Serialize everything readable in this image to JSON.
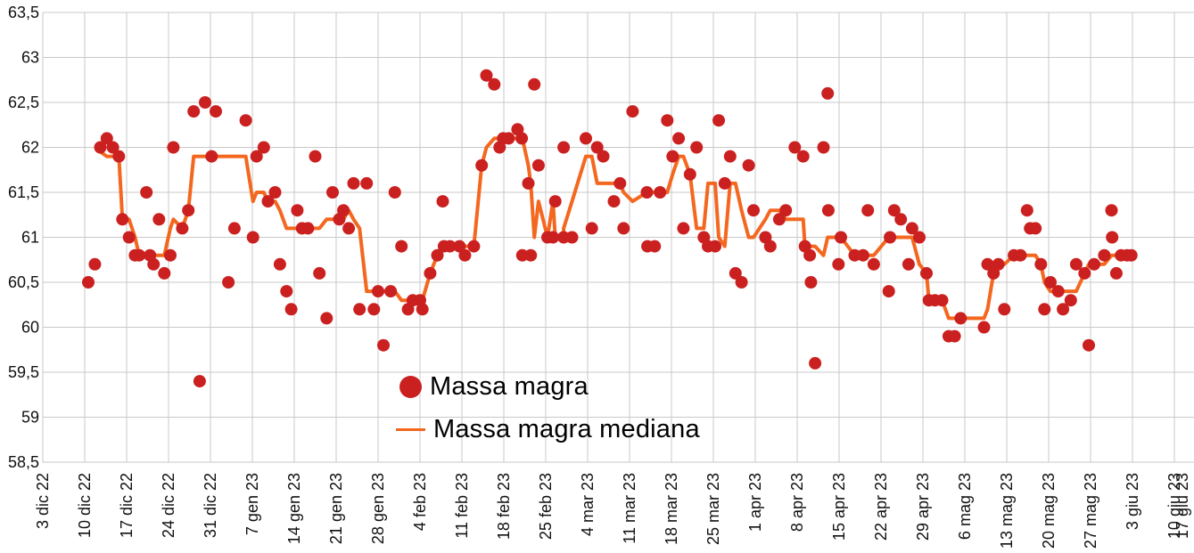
{
  "chart_data": {
    "type": "scatter",
    "title": "",
    "xlabel": "",
    "ylabel": "",
    "grid": true,
    "y_axis": {
      "min": 58.5,
      "max": 63.5,
      "step": 0.5,
      "tick_labels": [
        "63,5",
        "63",
        "62,5",
        "62",
        "61,5",
        "61",
        "60,5",
        "60",
        "59,5",
        "59",
        "58,5"
      ]
    },
    "x_axis": {
      "unit": "weeks",
      "tick_labels": [
        "3 dic 22",
        "10 dic 22",
        "17 dic 22",
        "24 dic 22",
        "31 dic 22",
        "7 gen 23",
        "14 gen 23",
        "21 gen 23",
        "28 gen 23",
        "4 feb 23",
        "11 feb 23",
        "18 feb 23",
        "25 feb 23",
        "4 mar 23",
        "11 mar 23",
        "18 mar 23",
        "25 mar 23",
        "1 apr 23",
        "8 apr 23",
        "15 apr 23",
        "22 apr 23",
        "29 apr 23",
        "6 mag 23",
        "13 mag 23",
        "20 mag 23",
        "27 mag 23",
        "3 giu 23",
        "10 giu 23",
        "17 giu 23"
      ]
    },
    "legend_position": "bottom-center-inside",
    "series": [
      {
        "name": "Massa magra",
        "type": "scatter",
        "color": "#cb2020",
        "marker": "circle",
        "points_format": [
          "days_since_3_dic_22",
          "kg"
        ],
        "points": [
          [
            7.6,
            60.5
          ],
          [
            8.7,
            60.7
          ],
          [
            9.6,
            62.0
          ],
          [
            10.7,
            62.1
          ],
          [
            11.7,
            62.0
          ],
          [
            12.7,
            61.9
          ],
          [
            13.3,
            61.2
          ],
          [
            14.4,
            61.0
          ],
          [
            15.4,
            60.8
          ],
          [
            16.1,
            60.8
          ],
          [
            17.3,
            61.5
          ],
          [
            17.9,
            60.8
          ],
          [
            18.5,
            60.7
          ],
          [
            19.4,
            61.2
          ],
          [
            20.3,
            60.6
          ],
          [
            21.3,
            60.8
          ],
          [
            21.8,
            62.0
          ],
          [
            23.3,
            61.1
          ],
          [
            24.3,
            61.3
          ],
          [
            25.2,
            62.4
          ],
          [
            26.2,
            59.4
          ],
          [
            27.1,
            62.5
          ],
          [
            28.2,
            61.9
          ],
          [
            28.9,
            62.4
          ],
          [
            31.0,
            60.5
          ],
          [
            32.0,
            61.1
          ],
          [
            33.9,
            62.3
          ],
          [
            35.1,
            61.0
          ],
          [
            35.7,
            61.9
          ],
          [
            36.9,
            62.0
          ],
          [
            37.6,
            61.4
          ],
          [
            38.8,
            61.5
          ],
          [
            39.6,
            60.7
          ],
          [
            40.7,
            60.4
          ],
          [
            41.5,
            60.2
          ],
          [
            42.5,
            61.3
          ],
          [
            43.3,
            61.1
          ],
          [
            44.3,
            61.1
          ],
          [
            45.5,
            61.9
          ],
          [
            46.2,
            60.6
          ],
          [
            47.4,
            60.1
          ],
          [
            48.4,
            61.5
          ],
          [
            49.5,
            61.2
          ],
          [
            50.2,
            61.3
          ],
          [
            51.1,
            61.1
          ],
          [
            51.9,
            61.6
          ],
          [
            52.9,
            60.2
          ],
          [
            54.1,
            61.6
          ],
          [
            55.3,
            60.2
          ],
          [
            56.0,
            60.4
          ],
          [
            56.9,
            59.8
          ],
          [
            58.1,
            60.4
          ],
          [
            58.8,
            61.5
          ],
          [
            59.9,
            60.9
          ],
          [
            61.0,
            60.2
          ],
          [
            61.8,
            60.3
          ],
          [
            63.0,
            60.3
          ],
          [
            63.4,
            60.2
          ],
          [
            64.7,
            60.6
          ],
          [
            65.9,
            60.8
          ],
          [
            66.8,
            61.4
          ],
          [
            67.0,
            60.9
          ],
          [
            68.0,
            60.9
          ],
          [
            69.6,
            60.9
          ],
          [
            70.5,
            60.8
          ],
          [
            72.0,
            60.9
          ],
          [
            73.3,
            61.8
          ],
          [
            74.1,
            62.8
          ],
          [
            75.4,
            62.7
          ],
          [
            76.3,
            62.0
          ],
          [
            76.9,
            62.1
          ],
          [
            77.8,
            62.1
          ],
          [
            79.3,
            62.2
          ],
          [
            80.0,
            62.1
          ],
          [
            80.1,
            60.8
          ],
          [
            81.1,
            61.6
          ],
          [
            81.5,
            60.8
          ],
          [
            82.1,
            62.7
          ],
          [
            82.8,
            61.8
          ],
          [
            84.3,
            61.0
          ],
          [
            85.2,
            61.0
          ],
          [
            85.6,
            61.4
          ],
          [
            87.0,
            61.0
          ],
          [
            87.0,
            62.0
          ],
          [
            88.4,
            61.0
          ],
          [
            90.7,
            62.1
          ],
          [
            91.7,
            61.1
          ],
          [
            92.6,
            62.0
          ],
          [
            93.6,
            61.9
          ],
          [
            95.4,
            61.4
          ],
          [
            96.4,
            61.6
          ],
          [
            97.0,
            61.1
          ],
          [
            98.5,
            62.4
          ],
          [
            100.9,
            61.5
          ],
          [
            101.0,
            60.9
          ],
          [
            102.2,
            60.9
          ],
          [
            103.1,
            61.5
          ],
          [
            104.3,
            62.3
          ],
          [
            105.2,
            61.9
          ],
          [
            106.2,
            62.1
          ],
          [
            107.0,
            61.1
          ],
          [
            108.1,
            61.7
          ],
          [
            109.2,
            62.0
          ],
          [
            110.4,
            61.0
          ],
          [
            111.1,
            60.9
          ],
          [
            112.3,
            60.9
          ],
          [
            112.9,
            62.3
          ],
          [
            113.9,
            61.6
          ],
          [
            114.8,
            61.9
          ],
          [
            115.7,
            60.6
          ],
          [
            116.7,
            60.5
          ],
          [
            117.9,
            61.8
          ],
          [
            118.7,
            61.3
          ],
          [
            120.7,
            61.0
          ],
          [
            121.5,
            60.9
          ],
          [
            123.0,
            61.2
          ],
          [
            124.1,
            61.3
          ],
          [
            125.6,
            62.0
          ],
          [
            127.0,
            61.9
          ],
          [
            127.3,
            60.9
          ],
          [
            128.1,
            60.8
          ],
          [
            128.3,
            60.5
          ],
          [
            129.0,
            59.6
          ],
          [
            130.4,
            62.0
          ],
          [
            131.1,
            62.6
          ],
          [
            131.2,
            61.3
          ],
          [
            132.9,
            60.7
          ],
          [
            133.3,
            61.0
          ],
          [
            135.6,
            60.8
          ],
          [
            137.0,
            60.8
          ],
          [
            137.8,
            61.3
          ],
          [
            138.8,
            60.7
          ],
          [
            141.3,
            60.4
          ],
          [
            141.5,
            61.0
          ],
          [
            142.2,
            61.3
          ],
          [
            143.3,
            61.2
          ],
          [
            144.6,
            60.7
          ],
          [
            145.2,
            61.1
          ],
          [
            146.4,
            61.0
          ],
          [
            147.6,
            60.6
          ],
          [
            148.0,
            60.3
          ],
          [
            149.0,
            60.3
          ],
          [
            150.2,
            60.3
          ],
          [
            151.3,
            59.9
          ],
          [
            152.3,
            59.9
          ],
          [
            153.3,
            60.1
          ],
          [
            157.2,
            60.0
          ],
          [
            157.8,
            60.7
          ],
          [
            158.8,
            60.6
          ],
          [
            159.6,
            60.7
          ],
          [
            160.6,
            60.2
          ],
          [
            162.2,
            60.8
          ],
          [
            163.3,
            60.8
          ],
          [
            164.4,
            61.3
          ],
          [
            164.9,
            61.1
          ],
          [
            165.8,
            61.1
          ],
          [
            166.7,
            60.7
          ],
          [
            167.3,
            60.2
          ],
          [
            168.3,
            60.5
          ],
          [
            169.6,
            60.4
          ],
          [
            170.4,
            60.2
          ],
          [
            171.7,
            60.3
          ],
          [
            172.6,
            60.7
          ],
          [
            174.0,
            60.6
          ],
          [
            174.7,
            59.8
          ],
          [
            175.6,
            60.7
          ],
          [
            177.3,
            60.8
          ],
          [
            178.5,
            61.3
          ],
          [
            178.6,
            61.0
          ],
          [
            179.3,
            60.6
          ],
          [
            180.1,
            60.8
          ],
          [
            181.1,
            60.8
          ],
          [
            181.8,
            60.8
          ]
        ]
      },
      {
        "name": "Massa magra mediana",
        "type": "line",
        "color": "#f4671f",
        "derived": "running_median_window_7_of_scatter_points"
      }
    ]
  },
  "legend": {
    "items": [
      {
        "label": "Massa magra",
        "marker": "dot",
        "color": "#cb2020"
      },
      {
        "label": "Massa magra mediana",
        "marker": "line",
        "color": "#f4671f"
      }
    ]
  },
  "colors": {
    "scatter": "#cb2020",
    "median_line": "#f4671f",
    "gridline": "#c9c9c9",
    "axis_text": "#111111",
    "background": "#ffffff"
  }
}
